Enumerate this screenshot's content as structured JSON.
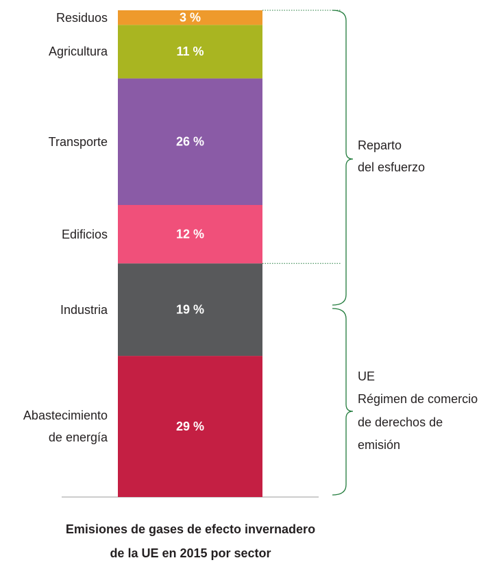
{
  "chart_data": {
    "type": "stacked_bar",
    "title": [
      "Emisiones de gases de efecto invernadero",
      "de la UE en 2015 por sector"
    ],
    "categories": [
      "Abastecimiento de energía",
      "Industria",
      "Edificios",
      "Transporte",
      "Agricultura",
      "Residuos"
    ],
    "values": [
      29,
      19,
      12,
      26,
      11,
      3
    ],
    "value_labels": [
      "29 %",
      "19 %",
      "12 %",
      "26 %",
      "11 %",
      "3 %"
    ],
    "colors": [
      "#c41f43",
      "#58595b",
      "#f0507a",
      "#8a5ba6",
      "#a9b521",
      "#ee9a2c"
    ],
    "annotations": [
      {
        "lines": [
          "Reparto",
          "del esfuerzo"
        ]
      },
      {
        "lines": [
          "UE",
          "Régimen de comercio",
          "de derechos de",
          "emisión"
        ]
      }
    ]
  }
}
